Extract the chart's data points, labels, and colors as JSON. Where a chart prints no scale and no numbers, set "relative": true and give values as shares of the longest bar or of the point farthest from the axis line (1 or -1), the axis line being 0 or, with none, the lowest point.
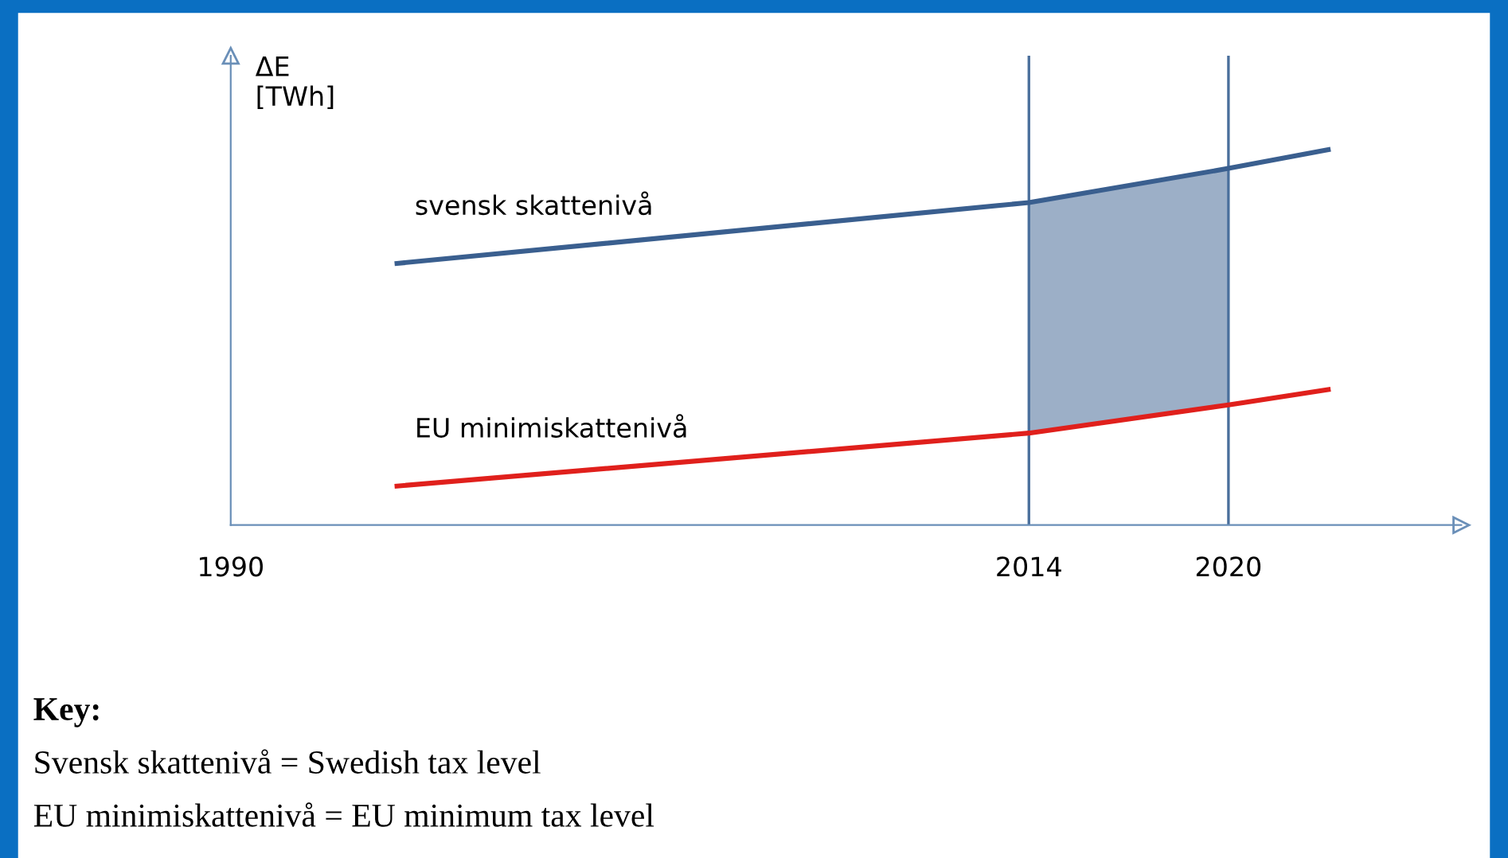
{
  "chart_data": {
    "type": "line",
    "relative": true,
    "ylabel": "ΔE\n[TWh]",
    "xlim": [
      1990,
      2027
    ],
    "xticks": [
      1990,
      2014,
      2020
    ],
    "series": [
      {
        "name": "svensk skattenivå",
        "color": "#3a5f8f",
        "x": [
          1995,
          2014,
          2020,
          2023
        ],
        "values": [
          0.697,
          0.859,
          0.95,
          1
        ],
        "lower": [
          null,
          0.245,
          0.32,
          null
        ],
        "upper": [
          null,
          0.859,
          0.95,
          null
        ]
      },
      {
        "name": "EU minimiskattenivå",
        "color": "#e0201c",
        "x": [
          1995,
          2014,
          2020,
          2023
        ],
        "values": [
          0.104,
          0.245,
          0.32,
          0.361
        ]
      }
    ],
    "ref_lines": [
      {
        "axis": "x",
        "value": 2014,
        "color": "#4a6f9c"
      },
      {
        "axis": "x",
        "value": 2020,
        "color": "#4a6f9c"
      }
    ],
    "annotations": [
      "Key:",
      "Svensk skattenivå = Swedish tax level",
      "EU minimiskattenivå = EU minimum tax level"
    ],
    "grid": false,
    "legend": false,
    "marker": "none",
    "line_style": "solid"
  }
}
